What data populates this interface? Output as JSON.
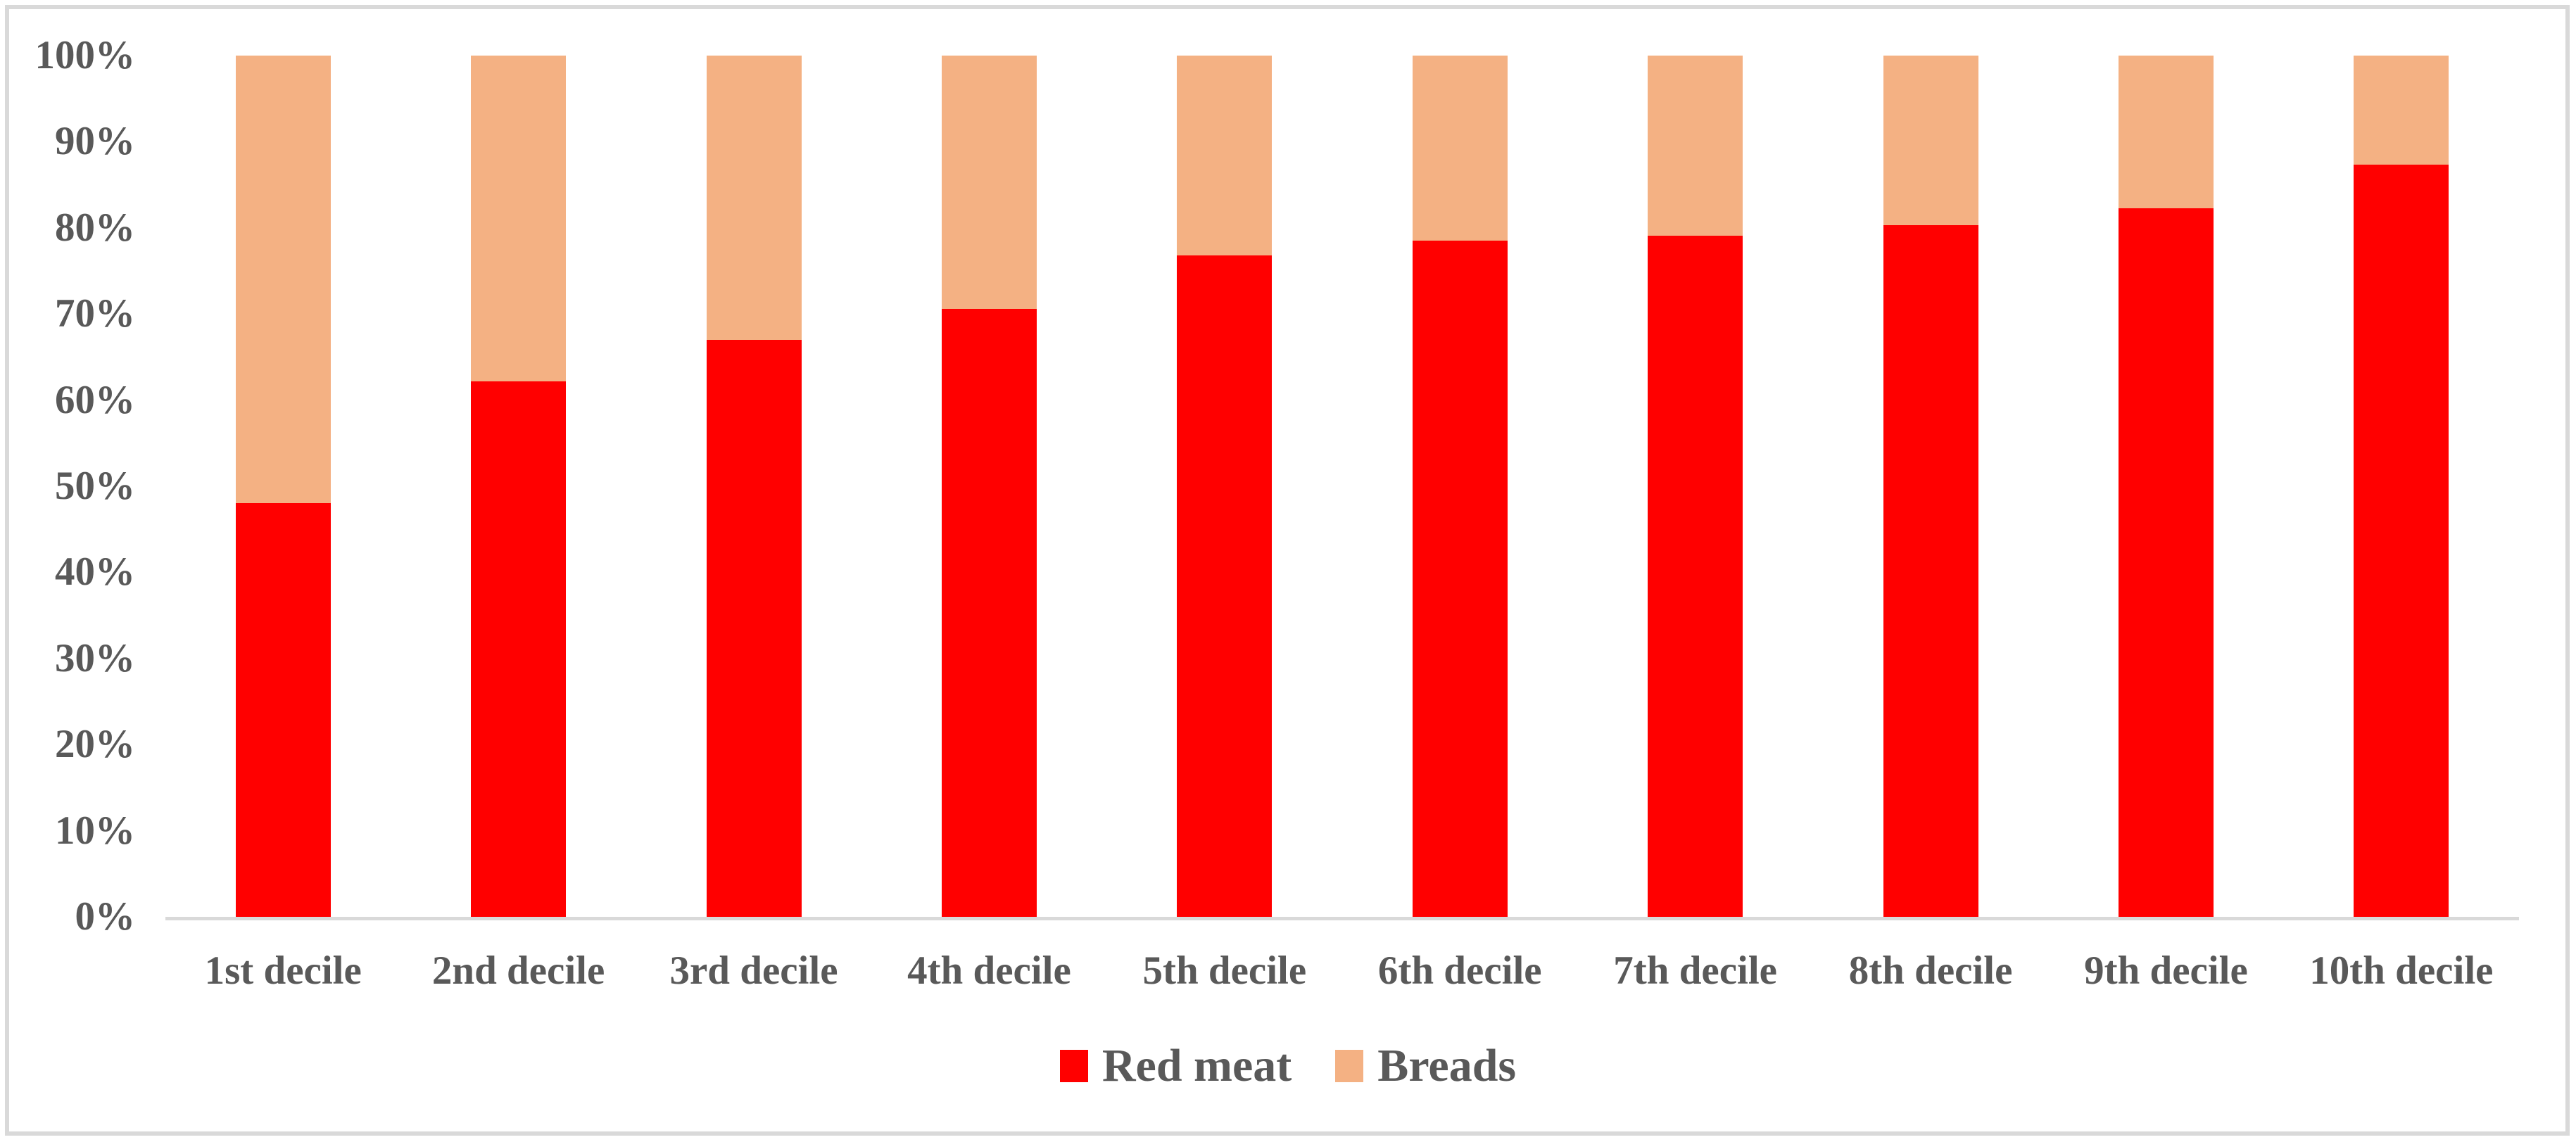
{
  "chart_data": {
    "type": "bar",
    "subtype": "stacked-100-percent",
    "title": "",
    "xlabel": "",
    "ylabel": "",
    "categories": [
      "1st decile",
      "2nd decile",
      "3rd decile",
      "4th decile",
      "5th decile",
      "6th decile",
      "7th decile",
      "8th decile",
      "9th decile",
      "10th decile"
    ],
    "series": [
      {
        "name": "Red meat",
        "color": "#ff0000",
        "values": [
          48.0,
          62.2,
          67.0,
          70.6,
          76.8,
          78.5,
          79.1,
          80.3,
          82.3,
          87.3
        ]
      },
      {
        "name": "Breads",
        "color": "#f4b183",
        "values": [
          52.0,
          37.8,
          33.0,
          29.4,
          23.2,
          21.5,
          20.9,
          19.7,
          17.7,
          12.7
        ]
      }
    ],
    "ylim": [
      0,
      100
    ],
    "y_ticks": [
      "0%",
      "10%",
      "20%",
      "30%",
      "40%",
      "50%",
      "60%",
      "70%",
      "80%",
      "90%",
      "100%"
    ],
    "grid": false,
    "legend_position": "bottom-center",
    "bar_order_bottom_to_top": [
      "Red meat",
      "Breads"
    ]
  },
  "colors": {
    "axis_line": "#d9d9d9",
    "frame_border": "#d9d9d9",
    "text": "#595959",
    "background": "#ffffff"
  }
}
